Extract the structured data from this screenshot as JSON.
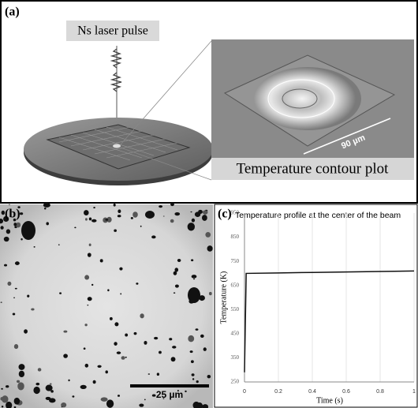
{
  "panels": {
    "a": {
      "label": "(a)",
      "pulse_label": "Ns laser pulse",
      "scale_label": "90 µm",
      "caption": "Temperature contour plot"
    },
    "b": {
      "label": "(b)",
      "scale_label": "25 µm"
    },
    "c": {
      "label": "(c)"
    }
  },
  "chart_data": {
    "type": "line",
    "title": "Temperature profile at the center of the beam",
    "x_label": "Time (s)",
    "y_label": "Temperature (K)",
    "x": [
      0,
      0.01,
      0.2,
      0.4,
      0.6,
      0.8,
      1
    ],
    "values": [
      290,
      700,
      702,
      704,
      706,
      708,
      710
    ],
    "color": "#111111",
    "xlim": [
      0,
      1
    ],
    "xticks": [
      0,
      0.2,
      0.4,
      0.6,
      0.8,
      1
    ],
    "ylim": [
      250,
      950
    ],
    "yticks": [
      250,
      350,
      450,
      550,
      650,
      750,
      850,
      950
    ],
    "grid": true
  }
}
